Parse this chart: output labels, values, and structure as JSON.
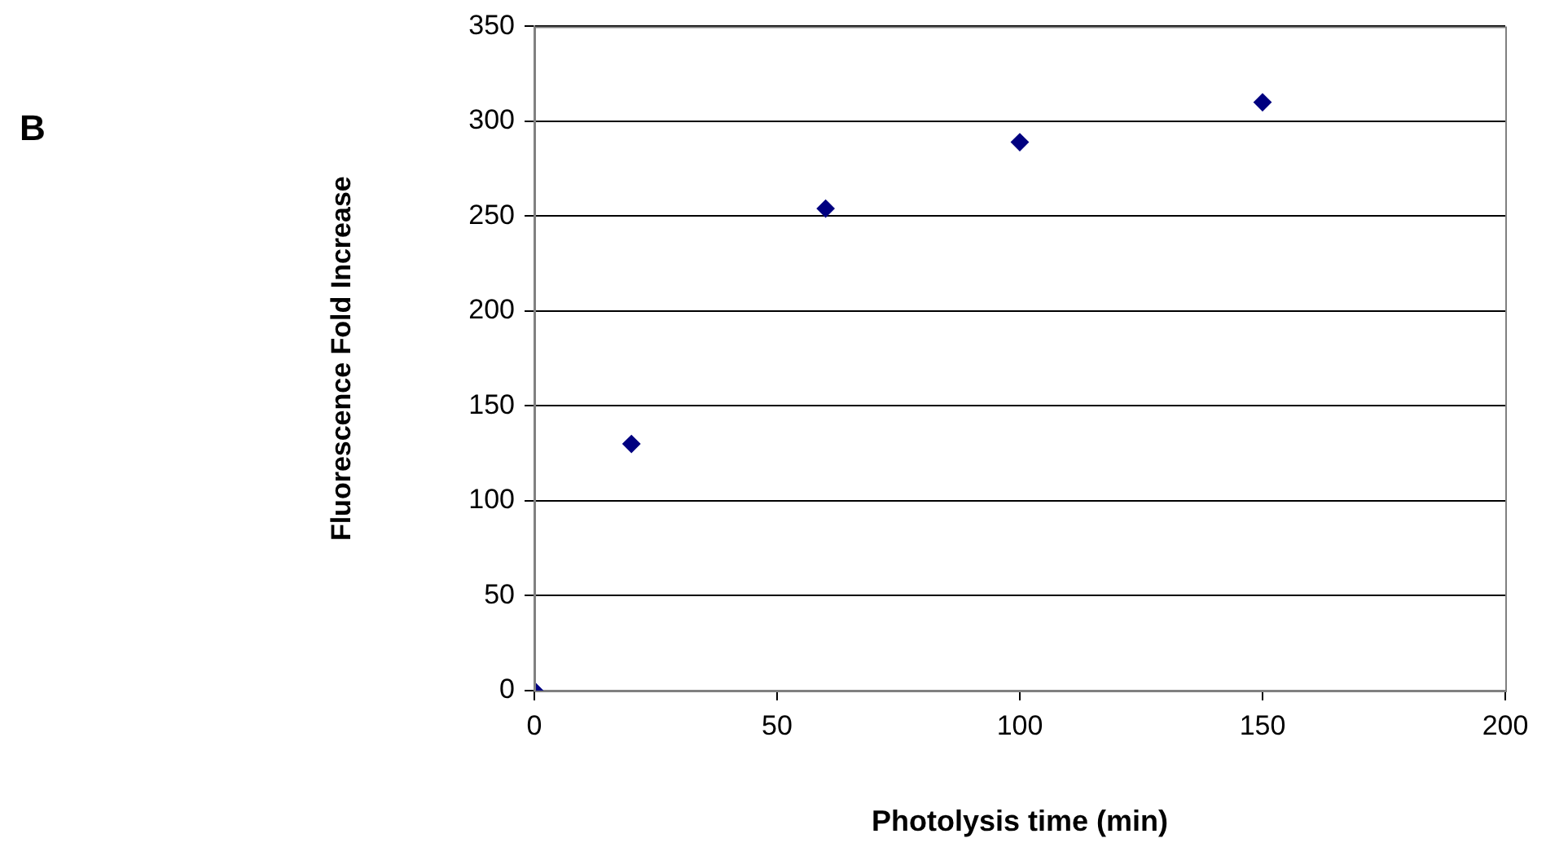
{
  "chart_data": {
    "type": "scatter",
    "xlabel": "Photolysis time (min)",
    "ylabel": "Fluorescence Fold Increase",
    "annotations": [
      "B"
    ],
    "x": [
      0,
      20,
      60,
      100,
      150
    ],
    "series": [
      {
        "color": "#000080",
        "values": [
          0,
          130,
          254,
          289,
          310
        ]
      }
    ],
    "xlim": [
      0,
      200
    ],
    "xticks": [
      0,
      50,
      100,
      150,
      200
    ],
    "ylim": [
      0,
      350
    ],
    "yticks": [
      0,
      50,
      100,
      150,
      200,
      250,
      300,
      350
    ],
    "grid": "y",
    "legend": false,
    "marker": "diamond"
  }
}
